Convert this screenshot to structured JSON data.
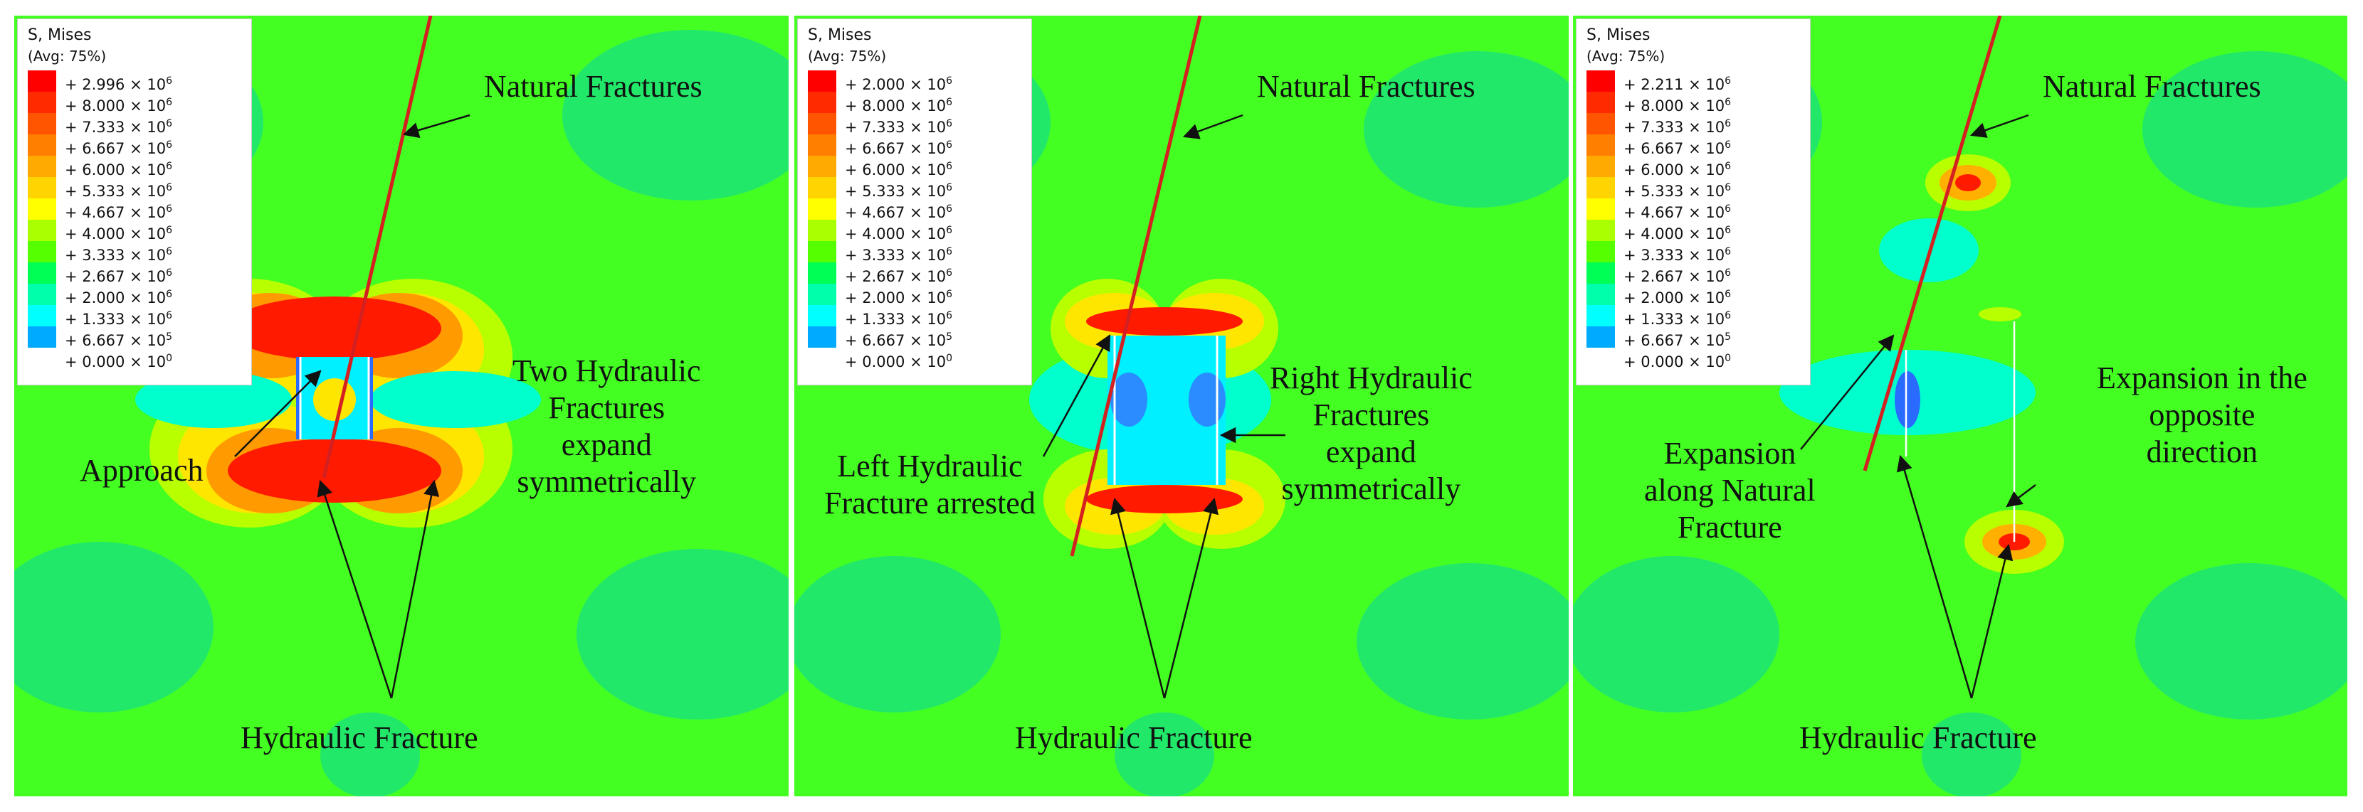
{
  "legend": {
    "title": "S, Mises",
    "subtitle": "(Avg: 75%)",
    "colors": [
      "#ff0000",
      "#ff2a00",
      "#ff5500",
      "#ff8000",
      "#ffaa00",
      "#ffd400",
      "#ffff00",
      "#aaff00",
      "#55ff00",
      "#00ff55",
      "#00ffaa",
      "#00ffff",
      "#00aaff",
      "#0055ff",
      "#0000ff"
    ],
    "rows": [
      "8.000 × 10^6",
      "7.333 × 10^6",
      "6.667 × 10^6",
      "6.000 × 10^6",
      "5.333 × 10^6",
      "4.667 × 10^6",
      "4.000 × 10^6",
      "3.333 × 10^6",
      "2.667 × 10^6",
      "2.000 × 10^6",
      "1.333 × 10^6",
      "6.667 × 10^5",
      "0.000 × 10^0"
    ]
  },
  "panels": [
    {
      "legend_max": "2.996 × 10^6",
      "labels": {
        "natural": "Natural Fractures",
        "middle": [
          "Two Hydraulic",
          "Fractures",
          "expand",
          "symmetrically"
        ],
        "left": [
          "Approach"
        ],
        "bottom": "Hydraulic Fracture"
      }
    },
    {
      "legend_max": "2.000 × 10^6",
      "labels": {
        "natural": "Natural Fractures",
        "middle": [
          "Right Hydraulic",
          "Fractures",
          "expand",
          "symmetrically"
        ],
        "left": [
          "Left Hydraulic",
          "Fracture arrested"
        ],
        "bottom": "Hydraulic Fracture"
      }
    },
    {
      "legend_max": "2.211 × 10^6",
      "labels": {
        "natural": "Natural Fractures",
        "middle": [
          "Expansion in the",
          "opposite",
          "direction"
        ],
        "left": [
          "Expansion",
          "along Natural",
          "Fracture"
        ],
        "bottom": "Hydraulic Fracture"
      }
    }
  ]
}
